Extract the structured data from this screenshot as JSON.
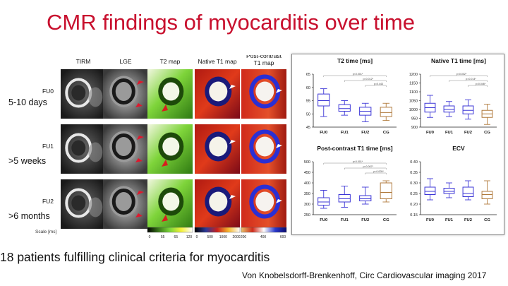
{
  "slide": {
    "title": "CMR findings of myocarditis over time",
    "caption": "18 patients fulfilling clinical criteria for myocarditis",
    "citation": "Von Knobelsdorff-Brenkenhoff, Circ Cardiovascular imaging 2017"
  },
  "mri_panel": {
    "columns": [
      "TIRM",
      "LGE",
      "T2 map",
      "Native T1 map",
      "Post-contrast\nT1 map"
    ],
    "rows": [
      {
        "code": "FU0",
        "label": "5-10 days"
      },
      {
        "code": "FU1",
        "label": ">5 weeks"
      },
      {
        "code": "FU2",
        "label": ">6 months"
      }
    ],
    "scale_label": "Scale [ms]",
    "scale_bars": [
      {
        "colors": [
          "#000000",
          "#3a7a1a",
          "#7cd63a",
          "#f5f23a",
          "#ffffff"
        ],
        "ticks": [
          "0",
          "55",
          "65",
          "120"
        ]
      },
      {
        "colors": [
          "#000000",
          "#2a3a9a",
          "#cc1f1a",
          "#f5b82e",
          "#ffffff"
        ],
        "ticks": [
          "0",
          "500",
          "1000",
          "2000"
        ]
      },
      {
        "colors": [
          "#e8c06a",
          "#d02a1a",
          "#ffffff",
          "#2a3acc",
          "#0a0a6a"
        ],
        "ticks": [
          "200",
          "400",
          "600"
        ]
      }
    ],
    "colors": {
      "lge_arrow": "#e0182d",
      "map_arrow": "#ffffff"
    }
  },
  "chart_data": [
    {
      "type": "boxplot",
      "title": "T2 time [ms]",
      "categories": [
        "FU0",
        "FU1",
        "FU2",
        "CG"
      ],
      "ylim": [
        45,
        65
      ],
      "yticks": [
        45,
        50,
        55,
        60,
        65
      ],
      "series": [
        {
          "name": "FU0",
          "min": 49,
          "q1": 53,
          "median": 55,
          "q3": 57.5,
          "max": 59.5
        },
        {
          "name": "FU1",
          "min": 49.5,
          "q1": 51,
          "median": 52,
          "q3": 53.5,
          "max": 55
        },
        {
          "name": "FU2",
          "min": 47,
          "q1": 49.5,
          "median": 51,
          "q3": 52.5,
          "max": 54
        },
        {
          "name": "CG",
          "min": 47.5,
          "q1": 49,
          "median": 50.5,
          "q3": 52.5,
          "max": 54
        }
      ],
      "comparisons": [
        {
          "from": "FU0",
          "to": "CG",
          "label": "p<0.001*"
        },
        {
          "from": "FU1",
          "to": "CG",
          "label": "p=0.012*"
        },
        {
          "from": "FU2",
          "to": "CG",
          "label": "p=0.443"
        }
      ]
    },
    {
      "type": "boxplot",
      "title": "Native T1 time [ms]",
      "categories": [
        "FU0",
        "FU1",
        "FU2",
        "CG"
      ],
      "ylim": [
        900,
        1200
      ],
      "yticks": [
        900,
        950,
        1000,
        1050,
        1100,
        1150,
        1200
      ],
      "series": [
        {
          "name": "FU0",
          "min": 955,
          "q1": 985,
          "median": 1010,
          "q3": 1035,
          "max": 1080
        },
        {
          "name": "FU1",
          "min": 960,
          "q1": 985,
          "median": 1000,
          "q3": 1020,
          "max": 1045
        },
        {
          "name": "FU2",
          "min": 945,
          "q1": 975,
          "median": 995,
          "q3": 1020,
          "max": 1055
        },
        {
          "name": "CG",
          "min": 915,
          "q1": 955,
          "median": 975,
          "q3": 995,
          "max": 1030
        }
      ],
      "comparisons": [
        {
          "from": "FU0",
          "to": "CG",
          "label": "p<0.002*"
        },
        {
          "from": "FU1",
          "to": "CG",
          "label": "p=0.014*"
        },
        {
          "from": "FU2",
          "to": "CG",
          "label": "p=0.046*"
        }
      ]
    },
    {
      "type": "boxplot",
      "title": "Post-contrast T1 time [ms]",
      "categories": [
        "FU0",
        "FU1",
        "FU2",
        "CG"
      ],
      "ylim": [
        250,
        500
      ],
      "yticks": [
        250,
        300,
        350,
        400,
        450,
        500
      ],
      "series": [
        {
          "name": "FU0",
          "min": 280,
          "q1": 295,
          "median": 310,
          "q3": 330,
          "max": 365
        },
        {
          "name": "FU1",
          "min": 285,
          "q1": 310,
          "median": 325,
          "q3": 345,
          "max": 385
        },
        {
          "name": "FU2",
          "min": 300,
          "q1": 315,
          "median": 325,
          "q3": 340,
          "max": 380
        },
        {
          "name": "CG",
          "min": 310,
          "q1": 325,
          "median": 355,
          "q3": 400,
          "max": 410
        }
      ],
      "comparisons": [
        {
          "from": "FU0",
          "to": "CG",
          "label": "p<0.001*"
        },
        {
          "from": "FU1",
          "to": "CG",
          "label": "p=0.007*"
        },
        {
          "from": "FU2",
          "to": "CG",
          "label": "p=0.005*"
        }
      ]
    },
    {
      "type": "boxplot",
      "title": "ECV",
      "categories": [
        "FU0",
        "FU1",
        "FU2",
        "CG"
      ],
      "ylim": [
        0.15,
        0.4
      ],
      "yticks": [
        0.15,
        0.2,
        0.25,
        0.3,
        0.35,
        0.4
      ],
      "series": [
        {
          "name": "FU0",
          "min": 0.22,
          "q1": 0.245,
          "median": 0.26,
          "q3": 0.28,
          "max": 0.32
        },
        {
          "name": "FU1",
          "min": 0.23,
          "q1": 0.25,
          "median": 0.26,
          "q3": 0.275,
          "max": 0.3
        },
        {
          "name": "FU2",
          "min": 0.22,
          "q1": 0.235,
          "median": 0.25,
          "q3": 0.28,
          "max": 0.31
        },
        {
          "name": "CG",
          "min": 0.2,
          "q1": 0.225,
          "median": 0.245,
          "q3": 0.26,
          "max": 0.31
        }
      ],
      "comparisons": []
    }
  ],
  "plot_colors": {
    "patient": "#3b35d6",
    "control": "#b07a3c",
    "axis": "#222222",
    "bracket": "#888888"
  }
}
